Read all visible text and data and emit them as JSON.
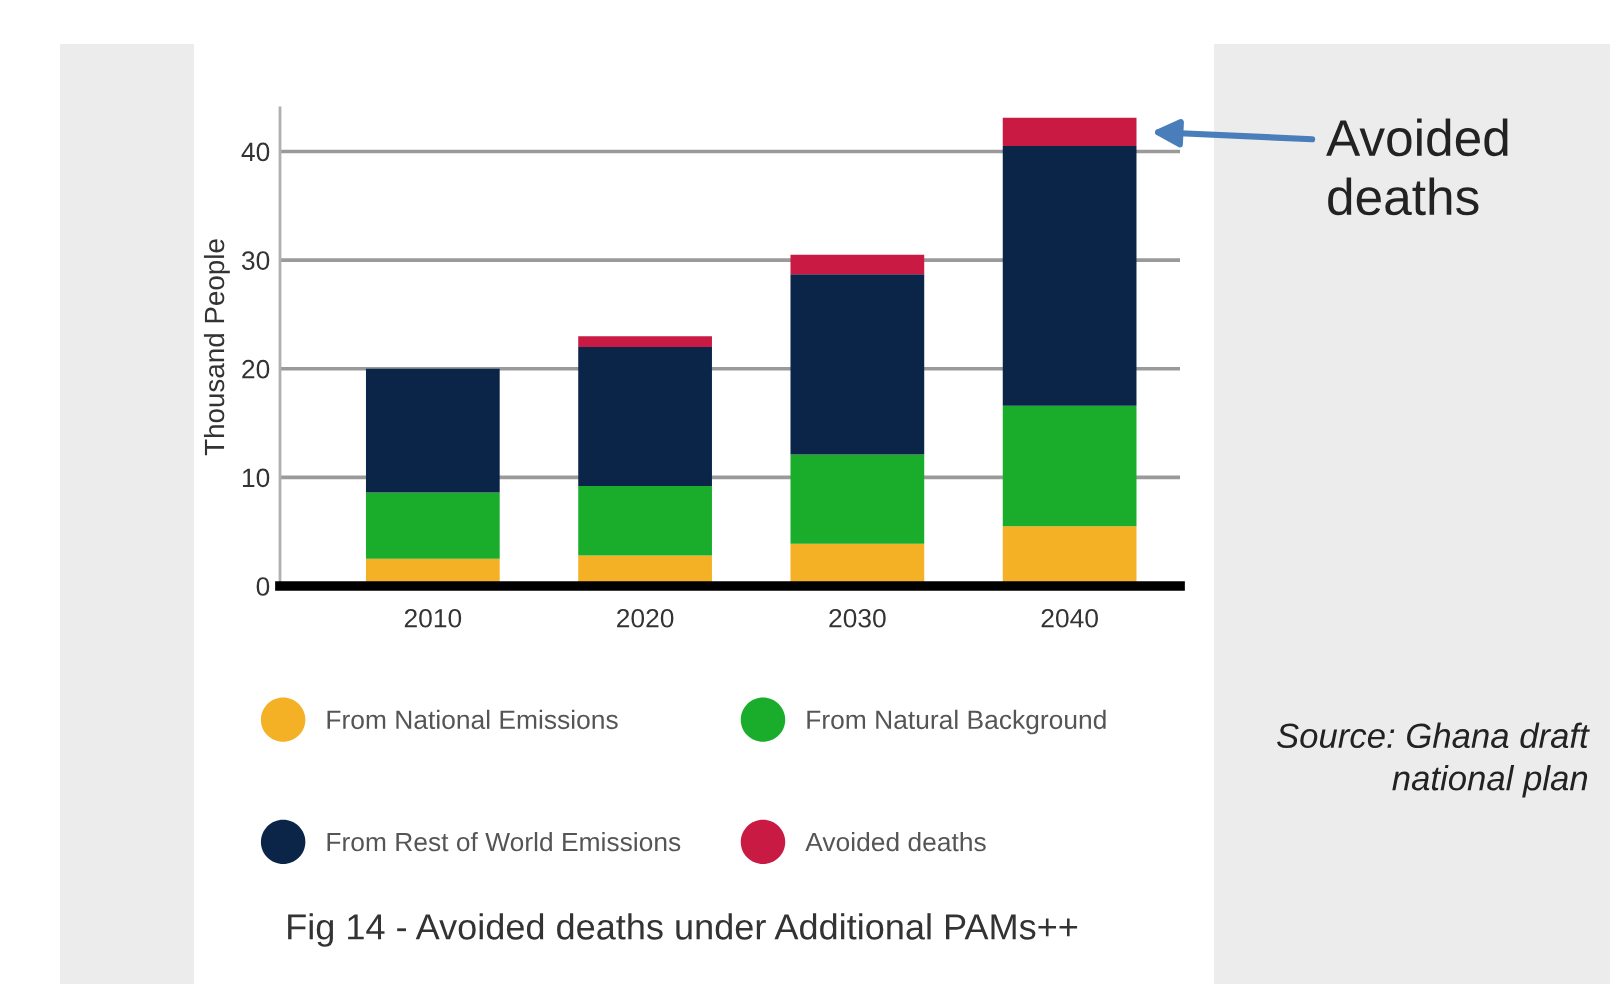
{
  "chart_data": {
    "type": "bar",
    "stacked": true,
    "title": "Fig 14 - Avoided deaths under Additional PAMs++",
    "ylabel": "Thousand People",
    "categories": [
      "2010",
      "2020",
      "2030",
      "2040"
    ],
    "series": [
      {
        "name": "From National Emissions",
        "color": "#f4b125",
        "values": [
          2.5,
          2.8,
          3.9,
          5.5
        ]
      },
      {
        "name": "From Natural Background",
        "color": "#1aad2b",
        "values": [
          6.1,
          6.4,
          8.2,
          11.1
        ]
      },
      {
        "name": "From Rest of World Emissions",
        "color": "#0b2549",
        "values": [
          11.4,
          12.8,
          16.6,
          23.9
        ]
      },
      {
        "name": "Avoided deaths",
        "color": "#c81a42",
        "values": [
          null,
          1.0,
          1.8,
          2.6
        ]
      }
    ],
    "ylim": [
      0,
      44
    ],
    "yticks": [
      0,
      10,
      20,
      30,
      40
    ],
    "grid": "y",
    "legend": "bottom",
    "annotations": [
      "Avoided deaths",
      "Source: Ghana draft national plan"
    ]
  }
}
